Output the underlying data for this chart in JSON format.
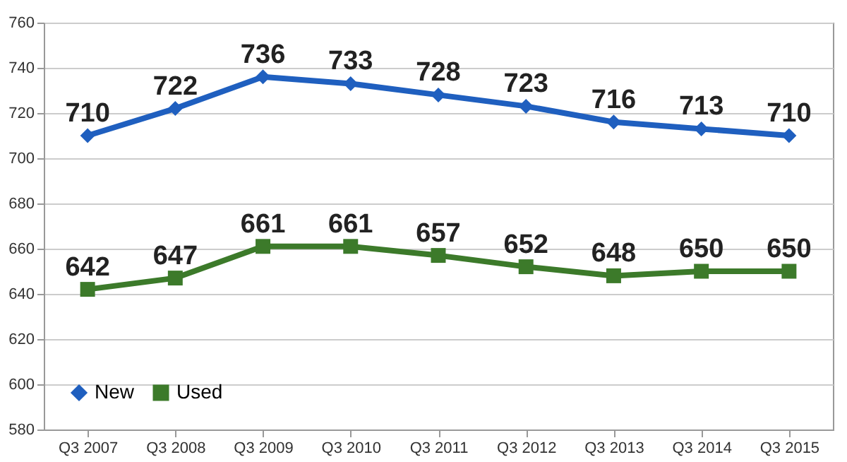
{
  "chart_data": {
    "type": "line",
    "categories": [
      "Q3 2007",
      "Q3 2008",
      "Q3 2009",
      "Q3 2010",
      "Q3 2011",
      "Q3 2012",
      "Q3 2013",
      "Q3 2014",
      "Q3 2015"
    ],
    "series": [
      {
        "name": "New",
        "color": "#1f5fbf",
        "marker": "diamond",
        "values": [
          710,
          722,
          736,
          733,
          728,
          723,
          716,
          713,
          710
        ]
      },
      {
        "name": "Used",
        "color": "#3c7a2a",
        "marker": "square",
        "values": [
          642,
          647,
          661,
          661,
          657,
          652,
          648,
          650,
          650
        ]
      }
    ],
    "ylim": [
      580,
      760
    ],
    "yticks": [
      580,
      600,
      620,
      640,
      660,
      680,
      700,
      720,
      740,
      760
    ],
    "grid": "y",
    "legend": "bottom left",
    "data_labels": true,
    "line_style": "solid"
  }
}
